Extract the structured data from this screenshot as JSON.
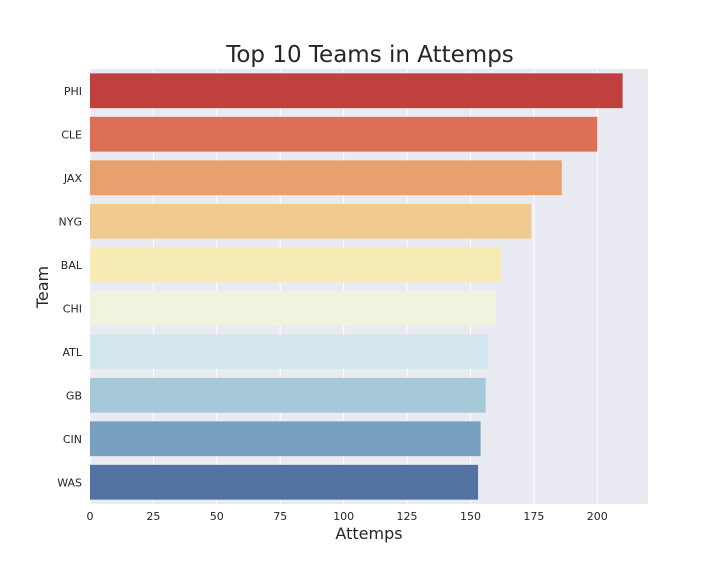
{
  "chart_data": {
    "type": "bar",
    "orientation": "horizontal",
    "title": "Top 10 Teams in Attemps",
    "xlabel": "Attemps",
    "ylabel": "Team",
    "categories": [
      "PHI",
      "CLE",
      "JAX",
      "NYG",
      "BAL",
      "CHI",
      "ATL",
      "GB",
      "CIN",
      "WAS"
    ],
    "values": [
      210,
      200,
      186,
      174,
      162,
      160,
      157,
      156,
      154,
      153
    ],
    "colors": [
      "#c0403f",
      "#dd6f55",
      "#e9a06f",
      "#f0ca8f",
      "#f5ebb3",
      "#f0f4de",
      "#d4e7ee",
      "#a6c9da",
      "#78a0c0",
      "#5272a3"
    ],
    "xlim": [
      0,
      220
    ],
    "xticks": [
      0,
      25,
      50,
      75,
      100,
      125,
      150,
      175,
      200
    ],
    "grid": true,
    "background": "#eaeaf2"
  }
}
